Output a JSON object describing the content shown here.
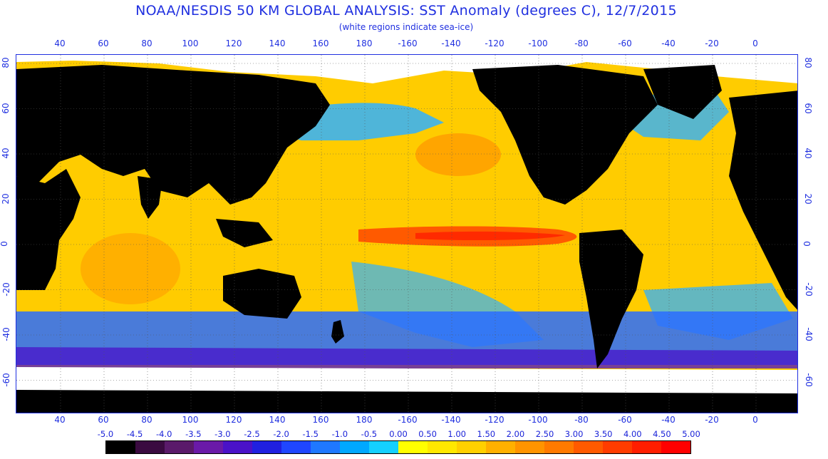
{
  "header": {
    "title": "NOAA/NESDIS 50 KM GLOBAL ANALYSIS: SST Anomaly (degrees C), 12/7/2015",
    "subtitle": "(white regions indicate sea-ice)"
  },
  "axes": {
    "lon_ticks": [
      "40",
      "60",
      "80",
      "100",
      "120",
      "140",
      "160",
      "180",
      "-160",
      "-140",
      "-120",
      "-100",
      "-80",
      "-60",
      "-40",
      "-20",
      "0"
    ],
    "lat_ticks": [
      "80",
      "60",
      "40",
      "20",
      "0",
      "-20",
      "-40",
      "-60"
    ]
  },
  "colorbar": {
    "labels": [
      "-5.0",
      "-4.5",
      "-4.0",
      "-3.5",
      "-3.0",
      "-2.5",
      "-2.0",
      "-1.5",
      "-1.0",
      "-0.5",
      "0.00",
      "0.50",
      "1.00",
      "1.50",
      "2.00",
      "2.50",
      "3.00",
      "3.50",
      "4.00",
      "4.50",
      "5.00"
    ],
    "colors": [
      "#000000",
      "#3a0a40",
      "#5a1a6a",
      "#6a1aa8",
      "#4a12c8",
      "#2020e0",
      "#1f46ff",
      "#1f78ff",
      "#00a8ff",
      "#14d0ff",
      "#ffff00",
      "#ffe800",
      "#ffd000",
      "#ffb000",
      "#ff9400",
      "#ff7a00",
      "#ff5a00",
      "#ff3c00",
      "#ff1e00",
      "#ff0000"
    ]
  },
  "map_colors": {
    "land": "#000000",
    "sea_ice": "#ffffff",
    "warm": "#ffcc00",
    "hot": "#ff6a00",
    "cool": "#30b0ff",
    "cold": "#2030e0"
  }
}
